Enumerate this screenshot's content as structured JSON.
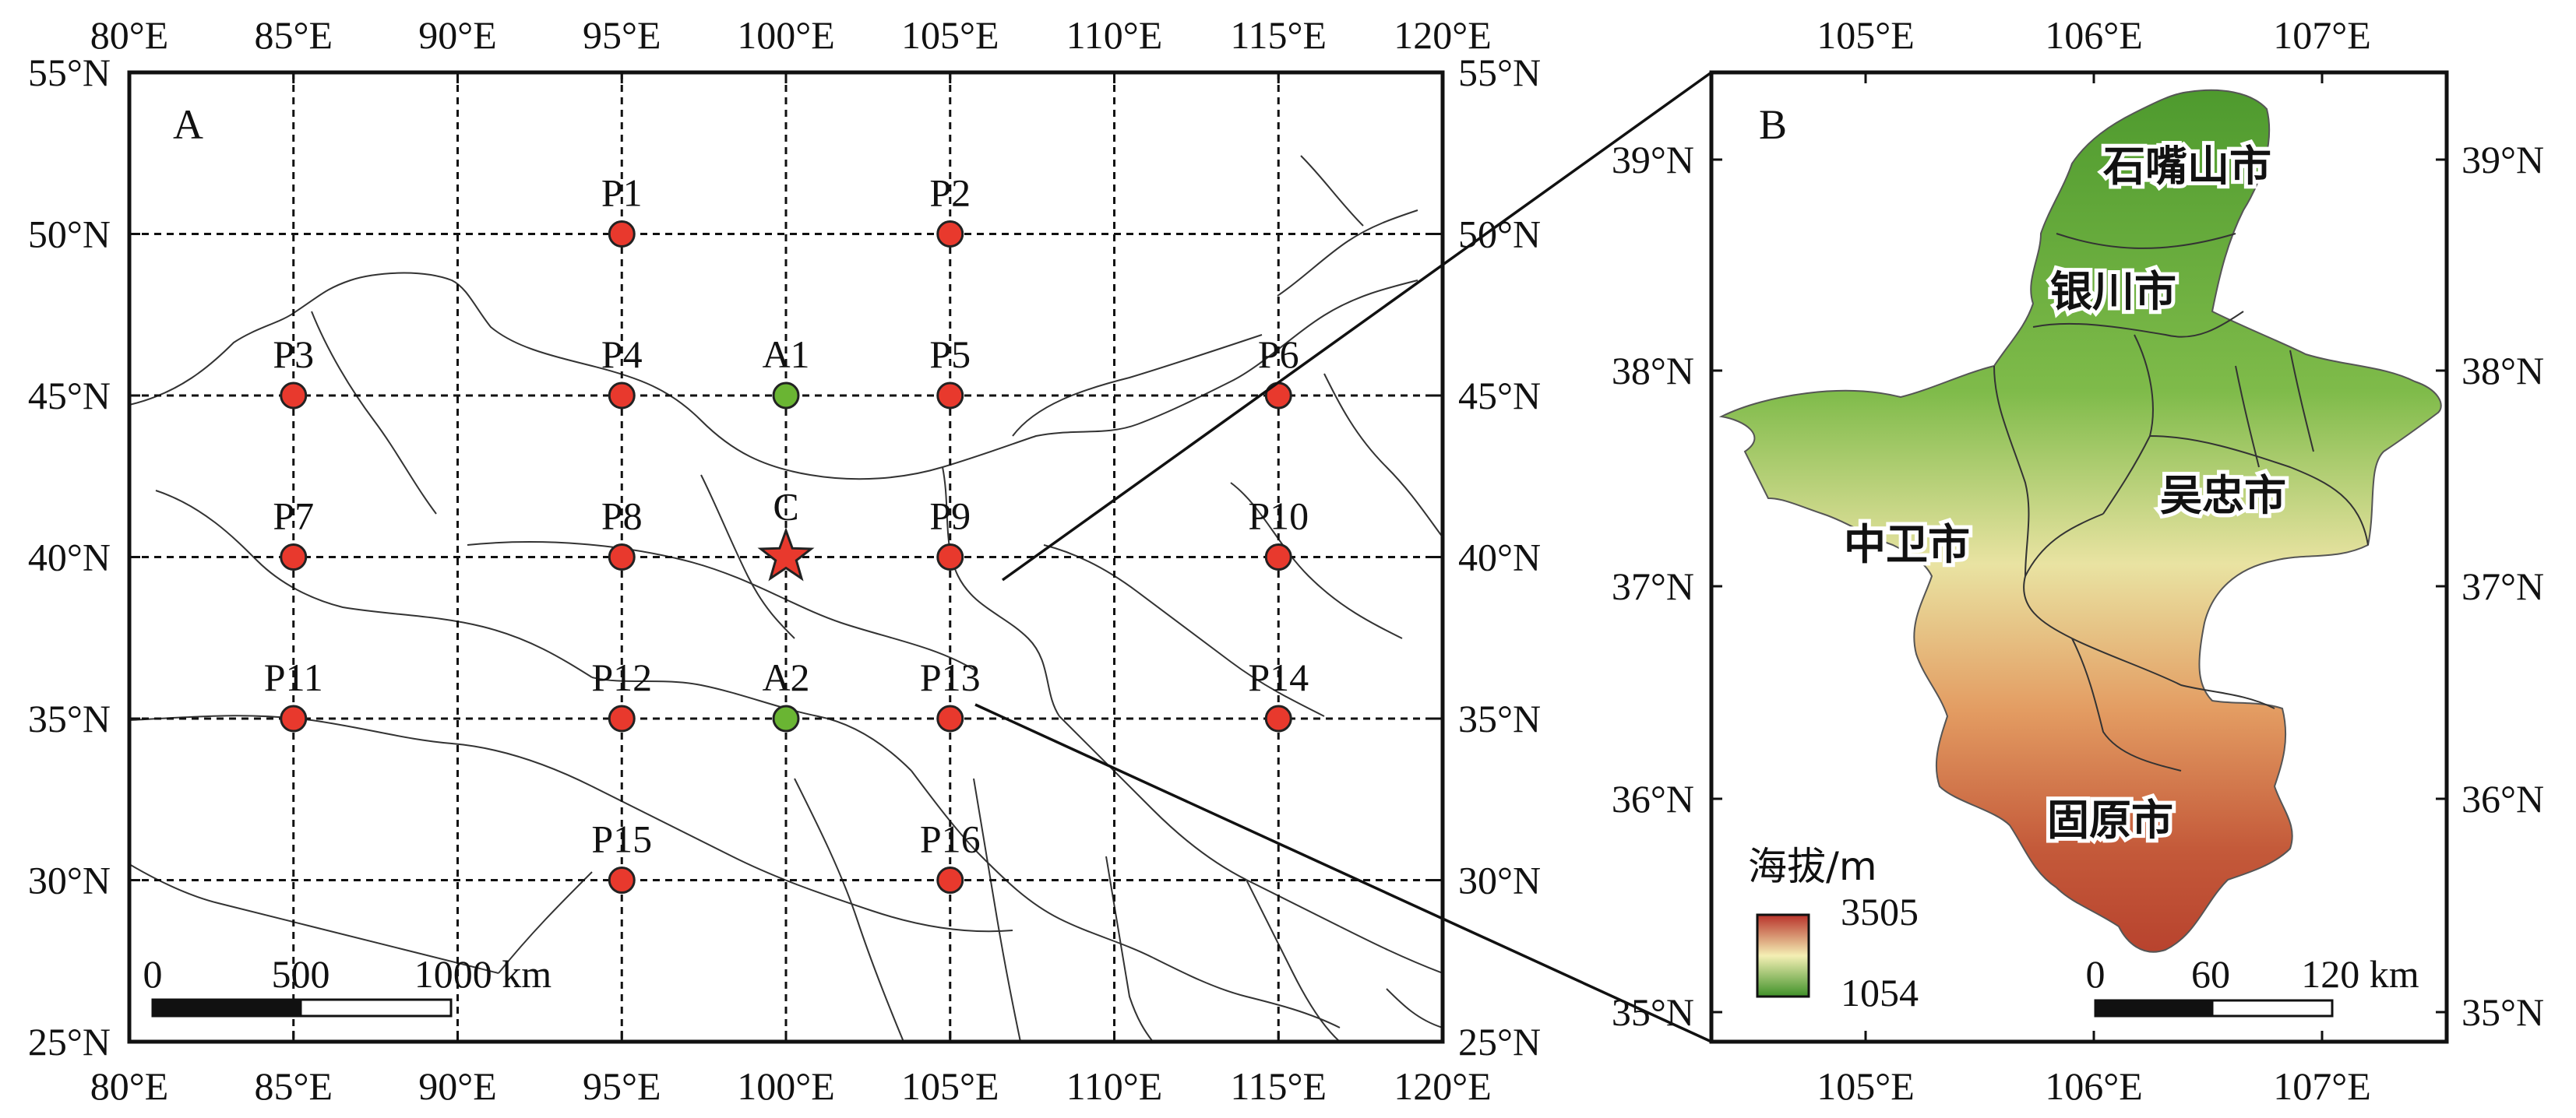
{
  "panelA": {
    "label": "A",
    "lon_ticks": [
      "80°E",
      "85°E",
      "90°E",
      "95°E",
      "100°E",
      "105°E",
      "110°E",
      "115°E",
      "120°E"
    ],
    "lat_ticks": [
      "55°N",
      "50°N",
      "45°N",
      "40°N",
      "35°N",
      "30°N",
      "25°N"
    ],
    "lon_range": [
      80,
      120
    ],
    "lat_range": [
      25,
      55
    ],
    "points": [
      {
        "id": "P1",
        "lon": 95,
        "lat": 50,
        "color": "#e8392d"
      },
      {
        "id": "P2",
        "lon": 105,
        "lat": 50,
        "color": "#e8392d"
      },
      {
        "id": "P3",
        "lon": 85,
        "lat": 45,
        "color": "#e8392d"
      },
      {
        "id": "P4",
        "lon": 95,
        "lat": 45,
        "color": "#e8392d"
      },
      {
        "id": "A1",
        "lon": 100,
        "lat": 45,
        "color": "#6ab533"
      },
      {
        "id": "P5",
        "lon": 105,
        "lat": 45,
        "color": "#e8392d"
      },
      {
        "id": "P6",
        "lon": 115,
        "lat": 45,
        "color": "#e8392d"
      },
      {
        "id": "P7",
        "lon": 85,
        "lat": 40,
        "color": "#e8392d"
      },
      {
        "id": "P8",
        "lon": 95,
        "lat": 40,
        "color": "#e8392d"
      },
      {
        "id": "P9",
        "lon": 105,
        "lat": 40,
        "color": "#e8392d"
      },
      {
        "id": "P10",
        "lon": 115,
        "lat": 40,
        "color": "#e8392d"
      },
      {
        "id": "P11",
        "lon": 85,
        "lat": 35,
        "color": "#e8392d"
      },
      {
        "id": "P12",
        "lon": 95,
        "lat": 35,
        "color": "#e8392d"
      },
      {
        "id": "A2",
        "lon": 100,
        "lat": 35,
        "color": "#6ab533"
      },
      {
        "id": "P13",
        "lon": 105,
        "lat": 35,
        "color": "#e8392d"
      },
      {
        "id": "P14",
        "lon": 115,
        "lat": 35,
        "color": "#e8392d"
      },
      {
        "id": "P15",
        "lon": 95,
        "lat": 30,
        "color": "#e8392d"
      },
      {
        "id": "P16",
        "lon": 105,
        "lat": 30,
        "color": "#e8392d"
      }
    ],
    "center": {
      "id": "C",
      "lon": 100,
      "lat": 40,
      "color": "#e8392d"
    },
    "scalebar": {
      "labels": [
        "0",
        "500",
        "1000 km"
      ]
    }
  },
  "panelB": {
    "label": "B",
    "lon_ticks": [
      "105°E",
      "106°E",
      "107°E"
    ],
    "lat_ticks": [
      "39°N",
      "38°N",
      "37°N",
      "36°N",
      "35°N"
    ],
    "cities": [
      "石嘴山市",
      "银川市",
      "吴忠市",
      "中卫市",
      "固原市"
    ],
    "legend": {
      "title": "海拔/m",
      "max": "3505",
      "min": "1054",
      "color_high": "#c0392b",
      "color_mid": "#f5f0b0",
      "color_low": "#4a9a2a"
    },
    "scalebar": {
      "labels": [
        "0",
        "60",
        "120 km"
      ]
    }
  }
}
